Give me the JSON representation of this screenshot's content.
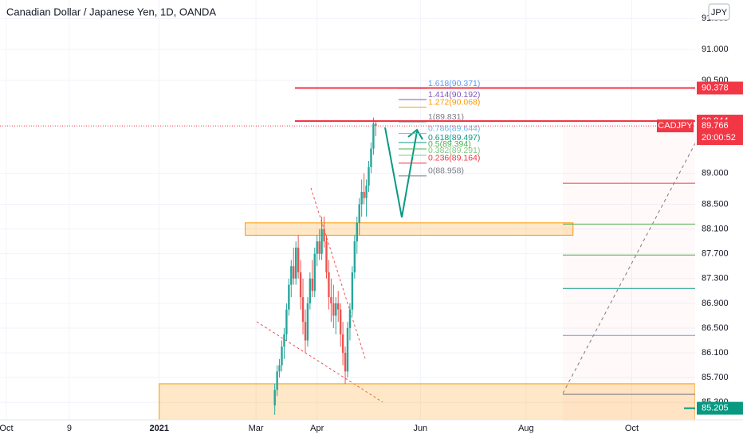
{
  "chart_data": {
    "type": "candlestick",
    "title": "Canadian Dollar / Japanese Yen, 1D, OANDA",
    "currency": "JPY",
    "up_color": "#26a69a",
    "down_color": "#ef5350",
    "x": [
      117,
      118,
      119,
      120,
      121,
      122,
      123,
      124,
      125,
      126,
      127,
      128,
      129,
      130,
      131,
      132,
      133,
      134,
      135,
      136,
      137,
      138,
      139,
      140,
      141,
      142,
      143,
      144,
      145,
      146,
      147,
      148,
      149,
      150,
      151,
      152,
      153,
      154,
      155,
      156,
      157,
      158,
      159,
      160
    ],
    "open": [
      85.25,
      85.5,
      85.8,
      85.9,
      86.2,
      86.4,
      86.8,
      87.2,
      87.5,
      87.3,
      87.8,
      87.4,
      87.0,
      86.6,
      86.3,
      86.9,
      87.3,
      87.1,
      87.7,
      87.9,
      87.7,
      88.1,
      87.9,
      87.4,
      87.0,
      86.9,
      86.7,
      86.9,
      86.8,
      86.4,
      86.1,
      85.8,
      86.5,
      86.8,
      87.4,
      87.9,
      88.2,
      88.5,
      88.7,
      88.6,
      88.8,
      89.1,
      89.4,
      89.8
    ],
    "high": [
      85.6,
      85.9,
      86.0,
      86.3,
      86.5,
      86.9,
      87.3,
      87.6,
      87.8,
      87.9,
      88.0,
      87.6,
      87.3,
      86.8,
      87.0,
      87.4,
      87.6,
      87.8,
      88.0,
      88.1,
      88.3,
      88.3,
      88.0,
      87.6,
      87.3,
      87.2,
      87.0,
      87.1,
      86.9,
      86.6,
      86.2,
      86.6,
      86.9,
      87.5,
      88.0,
      88.3,
      88.6,
      88.9,
      89.0,
      88.9,
      89.2,
      89.5,
      89.9,
      89.84
    ],
    "low": [
      85.1,
      85.4,
      85.7,
      85.8,
      86.0,
      86.3,
      86.7,
      87.0,
      87.2,
      87.2,
      87.3,
      86.8,
      86.4,
      86.1,
      86.2,
      86.8,
      87.0,
      87.0,
      87.5,
      87.6,
      87.6,
      87.8,
      87.3,
      86.8,
      86.6,
      86.5,
      86.4,
      86.6,
      86.2,
      85.9,
      85.6,
      85.7,
      86.3,
      86.7,
      87.3,
      87.7,
      88.0,
      88.3,
      88.5,
      88.3,
      88.7,
      89.0,
      89.3,
      89.6
    ],
    "close": [
      85.5,
      85.8,
      85.9,
      86.2,
      86.4,
      86.8,
      87.2,
      87.5,
      87.3,
      87.8,
      87.4,
      87.0,
      86.6,
      86.3,
      86.9,
      87.3,
      87.1,
      87.7,
      87.9,
      87.7,
      88.1,
      87.9,
      87.4,
      87.0,
      86.9,
      86.7,
      86.9,
      86.8,
      86.4,
      86.1,
      85.8,
      86.5,
      86.8,
      87.4,
      87.9,
      88.2,
      88.5,
      88.7,
      88.6,
      88.8,
      89.1,
      89.4,
      89.8,
      89.766
    ],
    "xlim": [
      0,
      296
    ],
    "xticks": [
      {
        "value": 2.7,
        "label": "Oct"
      },
      {
        "value": 29.5,
        "label": "9"
      },
      {
        "value": 67.8,
        "label": "2021"
      },
      {
        "value": 109,
        "label": "Mar"
      },
      {
        "value": 135,
        "label": "Apr"
      },
      {
        "value": 179,
        "label": "Jun"
      },
      {
        "value": 224,
        "label": "Aug"
      },
      {
        "value": 269,
        "label": "Oct"
      }
    ],
    "ylim": [
      85.02,
      91.8
    ],
    "yticks": [
      {
        "value": 91.5,
        "label": "91.500"
      },
      {
        "value": 91,
        "label": "91.000"
      },
      {
        "value": 90.5,
        "label": "90.500"
      },
      {
        "value": 89,
        "label": "89.000"
      },
      {
        "value": 88.5,
        "label": "88.500"
      },
      {
        "value": 88.1,
        "label": "88.100"
      },
      {
        "value": 87.7,
        "label": "87.700"
      },
      {
        "value": 87.3,
        "label": "87.300"
      },
      {
        "value": 86.9,
        "label": "86.900"
      },
      {
        "value": 86.5,
        "label": "86.500"
      },
      {
        "value": 86.1,
        "label": "86.100"
      },
      {
        "value": 85.7,
        "label": "85.700"
      },
      {
        "value": 85.3,
        "label": "85.300"
      }
    ],
    "price_lines": [
      {
        "value": 90.378,
        "color": "#f23645"
      },
      {
        "value": 89.844,
        "color": "#f23645"
      }
    ],
    "current": {
      "symbol": "CADJPY",
      "value": 89.766,
      "countdown": "20:00:52",
      "color": "#f23645"
    },
    "support_tag": {
      "value": 85.205,
      "color": "#089981"
    },
    "zones": [
      {
        "from": 88.0,
        "to": 88.2,
        "x_from": 104.4,
        "x_to": 244
      },
      {
        "from": 85.02,
        "to": 85.6,
        "x_from": 67.8,
        "x_to": 296
      }
    ],
    "fib": [
      {
        "label": "1.618(90.371)",
        "value": 90.371,
        "color": "#5b9cf6"
      },
      {
        "label": "1.414(90.192)",
        "value": 90.192,
        "color": "#7e57c2"
      },
      {
        "label": "1.272(90.068)",
        "value": 90.068,
        "color": "#ff9800"
      },
      {
        "label": "1(89.831)",
        "value": 89.831,
        "color": "#787b86"
      },
      {
        "label": "0.786(89.644)",
        "value": 89.644,
        "color": "#64b5f6"
      },
      {
        "label": "0.618(89.497)",
        "value": 89.497,
        "color": "#089981"
      },
      {
        "label": "0.5(89.394)",
        "value": 89.394,
        "color": "#4caf50"
      },
      {
        "label": "0.382(89.291)",
        "value": 89.291,
        "color": "#81c784"
      },
      {
        "label": "0.236(89.164)",
        "value": 89.164,
        "color": "#f23645"
      },
      {
        "label": "0(88.958)",
        "value": 88.958,
        "color": "#787b86"
      }
    ],
    "levels": [
      {
        "value": 88.84,
        "color": "#f23645"
      },
      {
        "value": 88.18,
        "color": "#4caf50"
      },
      {
        "value": 87.68,
        "color": "#4caf50"
      },
      {
        "value": 87.14,
        "color": "#089981"
      },
      {
        "value": 86.38,
        "color": "#5b9cf6"
      },
      {
        "value": 85.43,
        "color": "#787b86"
      }
    ]
  }
}
